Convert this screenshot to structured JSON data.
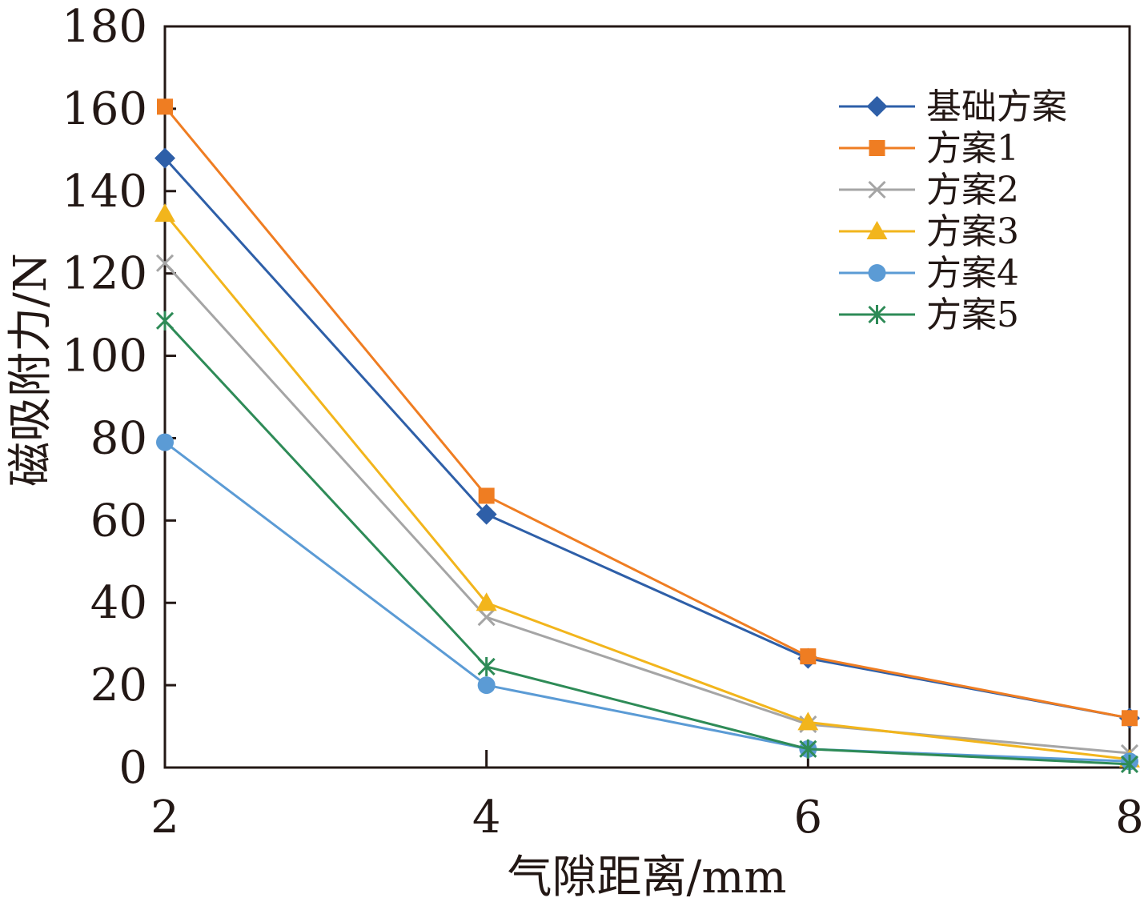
{
  "chart_data": {
    "type": "line",
    "x": [
      2,
      4,
      6,
      8
    ],
    "xlim": [
      2,
      8
    ],
    "ylim": [
      0,
      180
    ],
    "xticks": [
      "2",
      "4",
      "6",
      "8"
    ],
    "yticks": [
      "0",
      "20",
      "40",
      "60",
      "80",
      "100",
      "120",
      "140",
      "160",
      "180"
    ],
    "xlabel": "气隙距离/mm",
    "ylabel": "磁吸附力/N",
    "grid": false,
    "legend_position": "top-right",
    "series": [
      {
        "name": "基础方案",
        "values": [
          148,
          61.5,
          26.5,
          12
        ],
        "color": "#2e5fa8",
        "marker": "diamond"
      },
      {
        "name": "方案1",
        "values": [
          160.5,
          66,
          27,
          12
        ],
        "color": "#ef7d22",
        "marker": "square"
      },
      {
        "name": "方案2",
        "values": [
          122.5,
          36.5,
          10.5,
          3.5
        ],
        "color": "#a5a5a5",
        "marker": "x"
      },
      {
        "name": "方案3",
        "values": [
          134.5,
          40,
          11,
          2
        ],
        "color": "#f2b51c",
        "marker": "triangle"
      },
      {
        "name": "方案4",
        "values": [
          79,
          20,
          4.5,
          1.5
        ],
        "color": "#5b9bd5",
        "marker": "circle"
      },
      {
        "name": "方案5",
        "values": [
          108.5,
          24.5,
          4.5,
          0.8
        ],
        "color": "#2e8b57",
        "marker": "asterisk"
      }
    ]
  }
}
